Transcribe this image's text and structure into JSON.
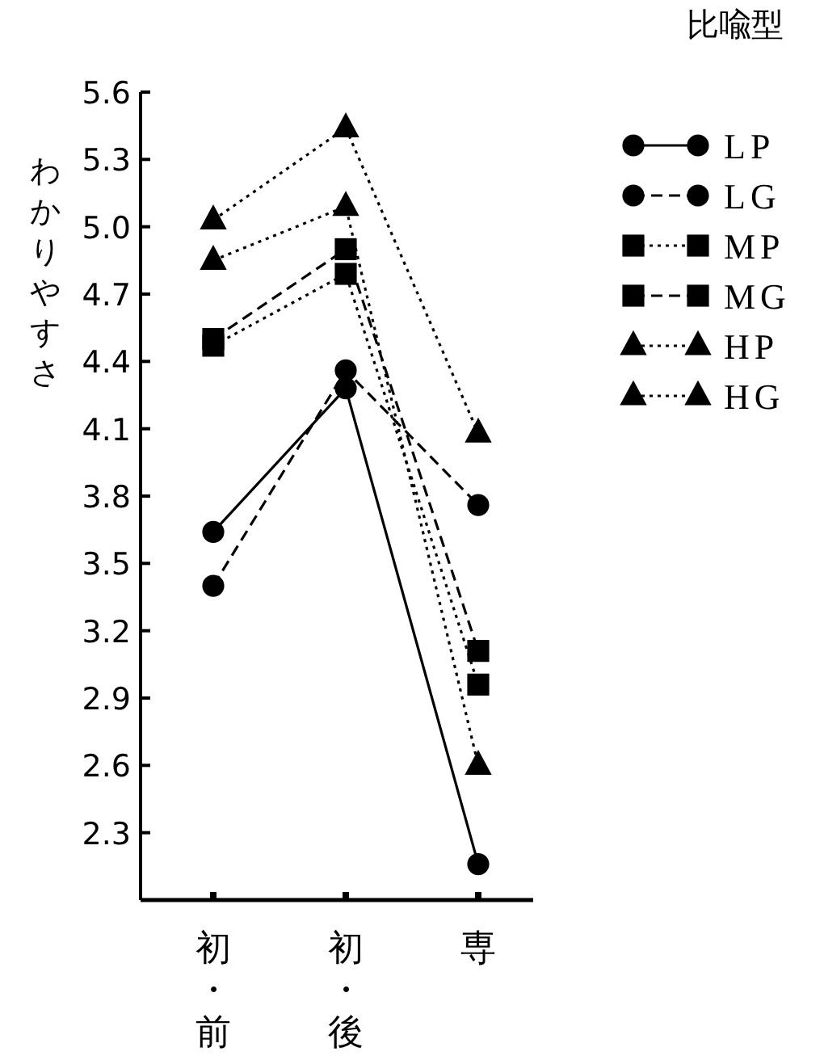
{
  "chart_data": {
    "type": "line",
    "ylabel": "わかりやすさ",
    "legend_title": "比喩型",
    "categories": [
      "初・前",
      "初・後",
      "専"
    ],
    "ylim": [
      2.0,
      5.6
    ],
    "yticks": [
      2.3,
      2.6,
      2.9,
      3.2,
      3.5,
      3.8,
      4.1,
      4.4,
      4.7,
      {
        "value": 5.0,
        "label": "5.0"
      },
      5.3,
      5.6
    ],
    "legend": "top right",
    "grid": false,
    "series": [
      {
        "name": "LP",
        "color": "#000000",
        "marker": "circle",
        "line_style": "solid",
        "values": [
          3.64,
          4.28,
          2.16
        ]
      },
      {
        "name": "LG",
        "color": "#000000",
        "marker": "circle",
        "line_style": "dashed",
        "values": [
          3.4,
          4.36,
          3.76
        ]
      },
      {
        "name": "MP",
        "color": "#000000",
        "marker": "square",
        "line_style": "dotted",
        "values": [
          4.47,
          4.79,
          2.96
        ]
      },
      {
        "name": "MG",
        "color": "#000000",
        "marker": "square",
        "line_style": "dashed",
        "values": [
          4.5,
          4.9,
          3.11
        ]
      },
      {
        "name": "HP",
        "color": "#000000",
        "marker": "triangle",
        "line_style": "dotted",
        "values": [
          4.85,
          5.09,
          2.6
        ]
      },
      {
        "name": "HG",
        "color": "#000000",
        "marker": "triangle",
        "line_style": "dotted",
        "values": [
          5.03,
          5.44,
          4.08
        ]
      }
    ]
  }
}
